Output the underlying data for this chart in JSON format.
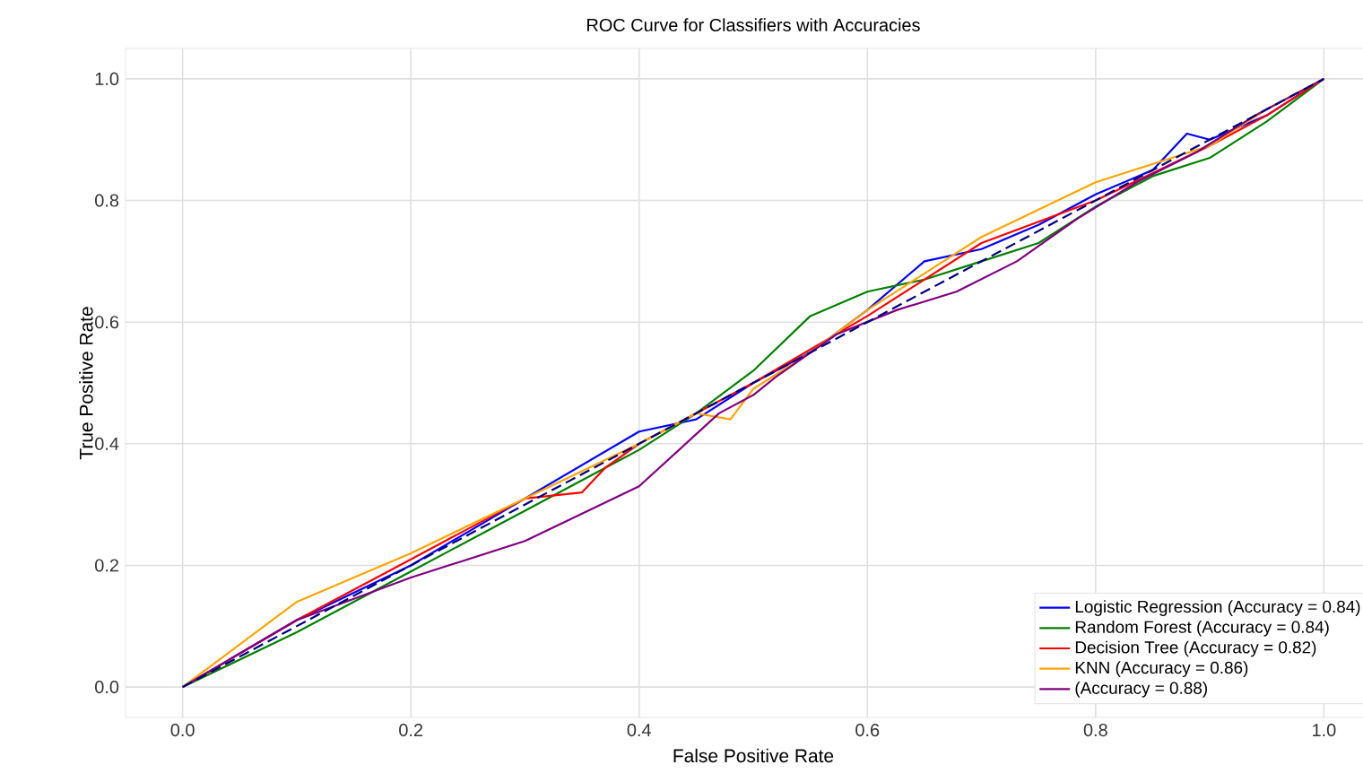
{
  "chart_data": {
    "type": "line",
    "title": "ROC Curve for Classifiers with Accuracies",
    "xlabel": "False Positive Rate",
    "ylabel": "True Positive Rate",
    "xlim": [
      -0.05,
      1.05
    ],
    "ylim": [
      -0.05,
      1.05
    ],
    "xticks": [
      {
        "value": 0,
        "label": "0.0"
      },
      {
        "value": 0.2,
        "label": "0.2"
      },
      {
        "value": 0.4,
        "label": "0.4"
      },
      {
        "value": 0.6,
        "label": "0.6"
      },
      {
        "value": 0.8,
        "label": "0.8"
      },
      {
        "value": 1,
        "label": "1.0"
      }
    ],
    "yticks": [
      {
        "value": 0,
        "label": "0.0"
      },
      {
        "value": 0.2,
        "label": "0.2"
      },
      {
        "value": 0.4,
        "label": "0.4"
      },
      {
        "value": 0.6,
        "label": "0.6"
      },
      {
        "value": 0.8,
        "label": "0.8"
      },
      {
        "value": 1,
        "label": "1.0"
      }
    ],
    "grid": true,
    "legend": "bottom right",
    "line_style": "solid",
    "series": [
      {
        "name": "Logistic Regression (Accuracy = 0.84)",
        "color": "#0000ff",
        "x": [
          0,
          0.1,
          0.2,
          0.3,
          0.4,
          0.45,
          0.5,
          0.55,
          0.6,
          0.65,
          0.7,
          0.75,
          0.8,
          0.85,
          0.88,
          0.9,
          0.95,
          1
        ],
        "values": [
          0,
          0.11,
          0.2,
          0.31,
          0.42,
          0.44,
          0.5,
          0.55,
          0.62,
          0.7,
          0.72,
          0.76,
          0.81,
          0.85,
          0.91,
          0.9,
          0.94,
          1
        ]
      },
      {
        "name": "Random Forest (Accuracy = 0.84)",
        "color": "#008000",
        "x": [
          0,
          0.1,
          0.2,
          0.25,
          0.28,
          0.3,
          0.35,
          0.4,
          0.45,
          0.5,
          0.55,
          0.6,
          0.65,
          0.7,
          0.75,
          0.8,
          0.85,
          0.9,
          0.95,
          1
        ],
        "values": [
          0,
          0.09,
          0.19,
          0.24,
          0.27,
          0.29,
          0.34,
          0.39,
          0.45,
          0.52,
          0.61,
          0.65,
          0.67,
          0.7,
          0.73,
          0.79,
          0.84,
          0.87,
          0.93,
          1
        ]
      },
      {
        "name": "Decision Tree (Accuracy = 0.82)",
        "color": "#ff0000",
        "x": [
          0,
          0.1,
          0.2,
          0.3,
          0.35,
          0.37,
          0.4,
          0.5,
          0.6,
          0.7,
          0.8,
          0.9,
          0.95,
          1
        ],
        "values": [
          0,
          0.11,
          0.21,
          0.31,
          0.32,
          0.36,
          0.4,
          0.5,
          0.61,
          0.73,
          0.8,
          0.89,
          0.94,
          1
        ]
      },
      {
        "name": "KNN (Accuracy = 0.86)",
        "color": "#ffa500",
        "x": [
          0,
          0.05,
          0.1,
          0.15,
          0.2,
          0.3,
          0.4,
          0.45,
          0.48,
          0.5,
          0.55,
          0.6,
          0.7,
          0.8,
          0.9,
          0.95,
          1
        ],
        "values": [
          0,
          0.07,
          0.14,
          0.18,
          0.22,
          0.31,
          0.4,
          0.45,
          0.44,
          0.49,
          0.55,
          0.62,
          0.74,
          0.83,
          0.89,
          0.95,
          1
        ]
      },
      {
        "name": "(Accuracy = 0.88)",
        "color": "#800080",
        "x": [
          0,
          0.1,
          0.2,
          0.3,
          0.4,
          0.47,
          0.5,
          0.52,
          0.573,
          0.626,
          0.678,
          0.731,
          0.784,
          0.836,
          0.889,
          0.94,
          1
        ],
        "values": [
          0,
          0.11,
          0.18,
          0.24,
          0.33,
          0.45,
          0.48,
          0.51,
          0.58,
          0.62,
          0.65,
          0.7,
          0.77,
          0.83,
          0.88,
          0.94,
          1
        ]
      },
      {
        "color": "#000080",
        "line_style": "dashed",
        "x": [
          0,
          1
        ],
        "values": [
          0,
          1
        ]
      }
    ]
  }
}
